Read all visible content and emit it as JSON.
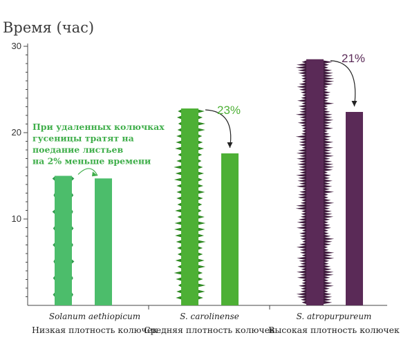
{
  "chart_data": {
    "type": "bar",
    "ylabel": "Время (час)",
    "ylim": [
      0,
      30
    ],
    "yticks": [
      10,
      20,
      30
    ],
    "groups": [
      {
        "species": "Solanum aethiopicum",
        "label": "Низкая плотность колючек",
        "values": [
          15,
          14.7
        ],
        "color": "#4cbd6b",
        "spine_color": "#2f9a4c",
        "change_label": "",
        "spine_density": "low"
      },
      {
        "species": "S. carolinense",
        "label": "Средняя плотность колючек",
        "values": [
          22.8,
          17.6
        ],
        "color": "#4db035",
        "spine_color": "#2f8a22",
        "change_label": "23%",
        "spine_density": "medium"
      },
      {
        "species": "S. atropurpureum",
        "label": "Высокая плотность колючек",
        "values": [
          28.5,
          22.4
        ],
        "color": "#5a2a57",
        "spine_color": "#3e1a3c",
        "change_label": "21%",
        "spine_density": "high"
      }
    ],
    "annotation": {
      "lines": [
        "При удаленных колючках",
        "гусеницы тратят на",
        "поедание листьев",
        "на 2% меньше времени"
      ],
      "color": "#3fae4a"
    },
    "grid": false
  }
}
